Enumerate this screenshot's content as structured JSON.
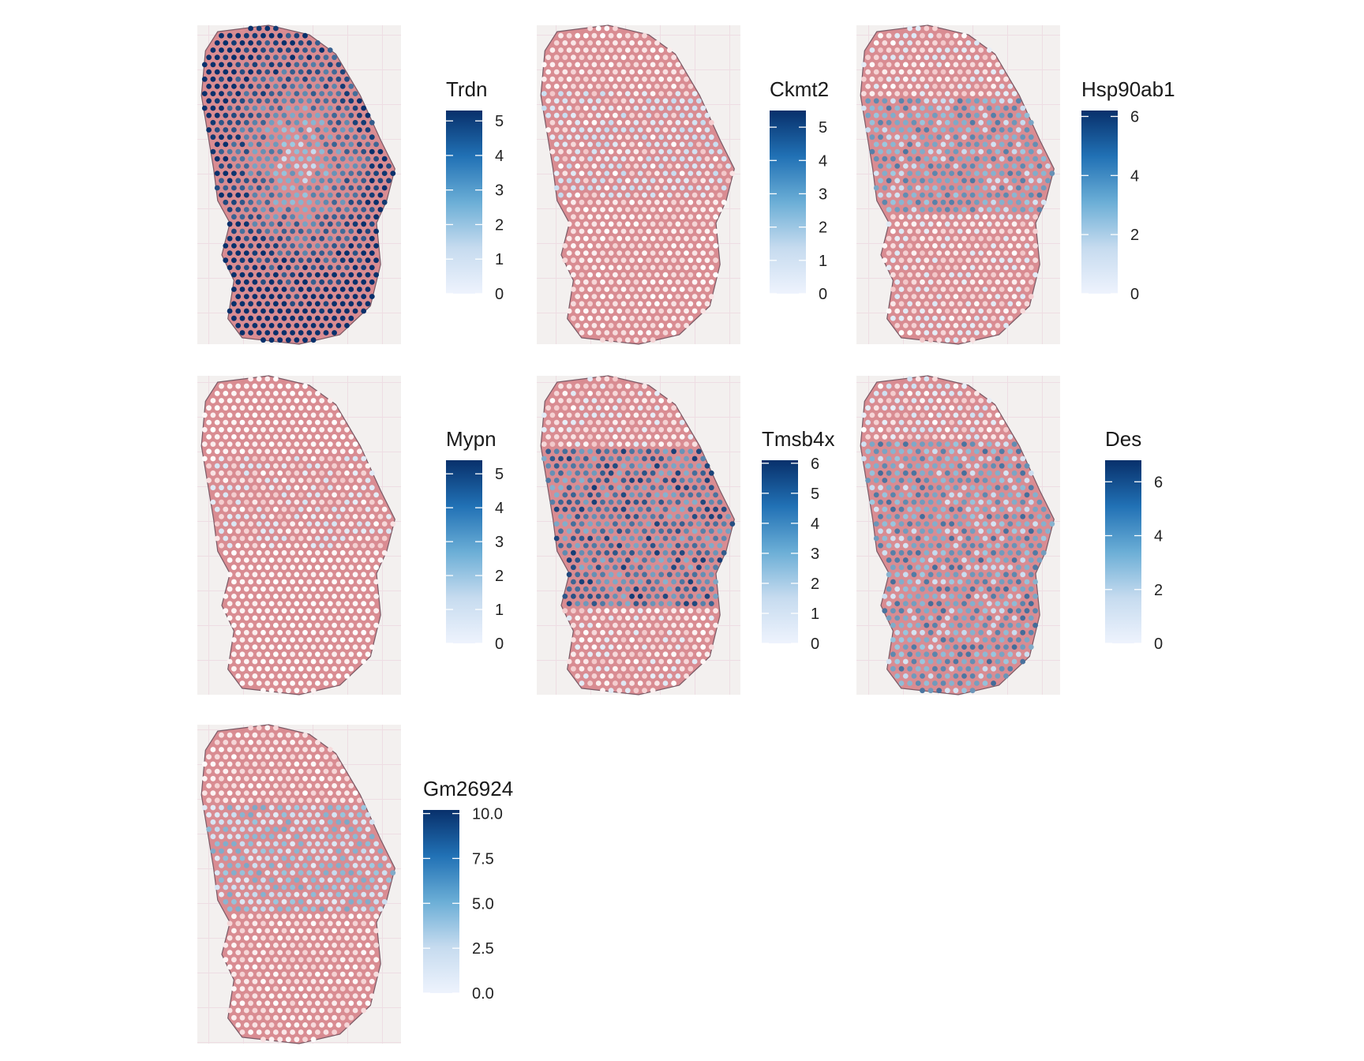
{
  "chart_data": [
    {
      "type": "heatmap",
      "title": "Trdn",
      "legend": {
        "title": "Trdn",
        "breaks": [
          0,
          1,
          2,
          3,
          4,
          5
        ],
        "labels": [
          "0",
          "1",
          "2",
          "3",
          "4",
          "5"
        ],
        "limits": [
          0,
          5.3
        ]
      },
      "pattern": "high_outer",
      "colors": {
        "low": "#eef3fd",
        "high": "#08306b"
      }
    },
    {
      "type": "heatmap",
      "title": "Ckmt2",
      "legend": {
        "title": "Ckmt2",
        "breaks": [
          0,
          1,
          2,
          3,
          4,
          5
        ],
        "labels": [
          "0",
          "1",
          "2",
          "3",
          "4",
          "5"
        ],
        "limits": [
          0,
          5.5
        ]
      },
      "pattern": "mostly_low",
      "colors": {
        "low": "#eef3fd",
        "high": "#08306b"
      }
    },
    {
      "type": "heatmap",
      "title": "Hsp90ab1",
      "legend": {
        "title": "Hsp90ab1",
        "breaks": [
          0,
          2,
          4,
          6
        ],
        "labels": [
          "0",
          "2",
          "4",
          "6"
        ],
        "limits": [
          0,
          6.2
        ]
      },
      "pattern": "mid_band",
      "colors": {
        "low": "#eef3fd",
        "high": "#08306b"
      }
    },
    {
      "type": "heatmap",
      "title": "Mypn",
      "legend": {
        "title": "Mypn",
        "breaks": [
          0,
          1,
          2,
          3,
          4,
          5
        ],
        "labels": [
          "0",
          "1",
          "2",
          "3",
          "4",
          "5"
        ],
        "limits": [
          0,
          5.4
        ]
      },
      "pattern": "very_low",
      "colors": {
        "low": "#eef3fd",
        "high": "#08306b"
      }
    },
    {
      "type": "heatmap",
      "title": "Tmsb4x",
      "legend": {
        "title": "Tmsb4x",
        "breaks": [
          0,
          1,
          2,
          3,
          4,
          5,
          6
        ],
        "labels": [
          "0",
          "1",
          "2",
          "3",
          "4",
          "5",
          "6"
        ],
        "limits": [
          0,
          6.1
        ]
      },
      "pattern": "high_center",
      "colors": {
        "low": "#eef3fd",
        "high": "#08306b"
      }
    },
    {
      "type": "heatmap",
      "title": "Des",
      "legend": {
        "title": "Des",
        "breaks": [
          0,
          2,
          4,
          6
        ],
        "labels": [
          "0",
          "2",
          "4",
          "6"
        ],
        "limits": [
          0,
          6.8
        ]
      },
      "pattern": "broad",
      "colors": {
        "low": "#eef3fd",
        "high": "#08306b"
      }
    },
    {
      "type": "heatmap",
      "title": "Gm26924",
      "legend": {
        "title": "Gm26924",
        "breaks": [
          0,
          2.5,
          5,
          7.5,
          10
        ],
        "labels": [
          "0.0",
          "2.5",
          "5.0",
          "7.5",
          "10.0"
        ],
        "limits": [
          0,
          10.2
        ]
      },
      "pattern": "low_center",
      "colors": {
        "low": "#eef3fd",
        "high": "#08306b"
      }
    }
  ]
}
